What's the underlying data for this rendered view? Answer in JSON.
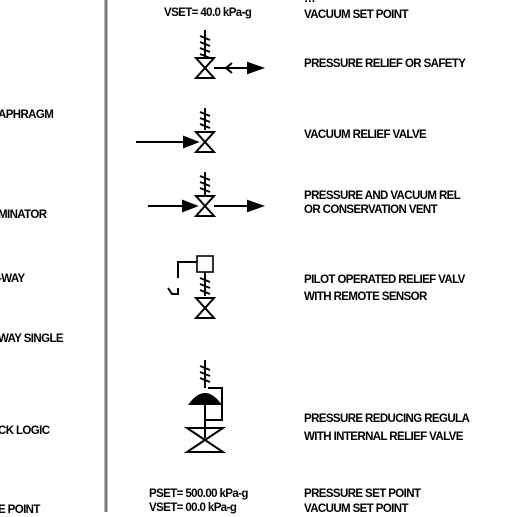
{
  "left_column": {
    "item_diaphragm": "APHRAGM",
    "item_eliminator": "MINATOR",
    "item_3way": "-WAY",
    "item_4way": "WAY SINGLE",
    "item_block_logic": "CK LOGIC",
    "item_set_point": "E POINT"
  },
  "top": {
    "top_partial": "…",
    "vset_value": "VSET= 40.0 kPa-g",
    "vset_label": "VACUUM SET POINT"
  },
  "rows": [
    {
      "line1": "PRESSURE RELIEF OR SAFETY",
      "line2": ""
    },
    {
      "line1": "VACUUM RELIEF VALVE",
      "line2": ""
    },
    {
      "line1": "PRESSURE AND  VACUUM REL",
      "line2": "OR CONSERVATION VENT"
    },
    {
      "line1": "PILOT OPERATED RELIEF VALV",
      "line2": "WITH REMOTE SENSOR"
    },
    {
      "line1": "PRESSURE REDUCING REGULA",
      "line2": "WITH INTERNAL RELIEF VALVE"
    }
  ],
  "bottom": {
    "pset_value": "PSET= 500.00 kPa-g",
    "pset_label": "PRESSURE SET POINT",
    "vset_value": "VSET= 00.0 kPa-g",
    "vset_label": "VACUUM SET POINT"
  },
  "colors": {
    "ink": "#000000",
    "divider": "#7a7a7a",
    "background": "#ffffff"
  }
}
